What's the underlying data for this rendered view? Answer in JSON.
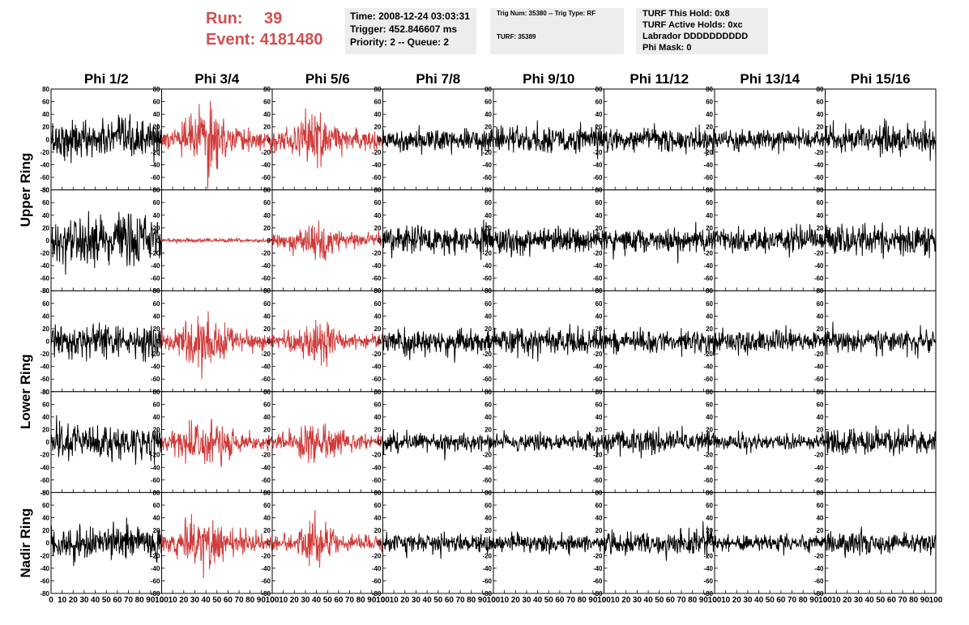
{
  "header": {
    "run_label": "Run:",
    "run_value": "39",
    "event_label": "Event:",
    "event_value": "4181480"
  },
  "info_time": {
    "time": "Time: 2008-12-24 03:03:31",
    "trigger": "Trigger: 452.846607 ms",
    "priority": "Priority: 2 -- Queue: 2"
  },
  "info_trig": {
    "trig": "Trig Num: 35380 -- Trig Type: RF",
    "turf": "TURF: 35389"
  },
  "info_turf": {
    "this_hold": "TURF This Hold: 0x8",
    "active_holds": "TURF Active Holds: 0xc",
    "labrador": "Labrador DDDDDDDDDD",
    "phi_mask": "Phi Mask: 0"
  },
  "colors": {
    "triggered": "#d03a3a",
    "normal": "#000000"
  },
  "chart_data": {
    "type": "line",
    "columns": [
      "Phi 1/2",
      "Phi 3/4",
      "Phi 5/6",
      "Phi 7/8",
      "Phi 9/10",
      "Phi 11/12",
      "Phi 13/14",
      "Phi 15/16"
    ],
    "row_groups": [
      {
        "label": "Upper Ring",
        "panel_rows": 2
      },
      {
        "label": "Lower Ring",
        "panel_rows": 2
      },
      {
        "label": "Nadir Ring",
        "panel_rows": 1
      }
    ],
    "xlim": [
      0,
      100
    ],
    "ylim": [
      -80,
      80
    ],
    "xticks": [
      0,
      10,
      20,
      30,
      40,
      50,
      60,
      70,
      80,
      90,
      100
    ],
    "yticks": [
      -80,
      -60,
      -40,
      -20,
      0,
      20,
      40,
      60,
      80
    ],
    "samples_per_trace": 260,
    "panels": [
      {
        "row": 0,
        "col": 0,
        "amp": 20,
        "triggered": false,
        "env": "flat"
      },
      {
        "row": 0,
        "col": 1,
        "amp": 25,
        "triggered": true,
        "env": "burst"
      },
      {
        "row": 0,
        "col": 2,
        "amp": 22,
        "triggered": true,
        "env": "burst"
      },
      {
        "row": 0,
        "col": 3,
        "amp": 12,
        "triggered": false,
        "env": "flat"
      },
      {
        "row": 0,
        "col": 4,
        "amp": 14,
        "triggered": false,
        "env": "flat"
      },
      {
        "row": 0,
        "col": 5,
        "amp": 12,
        "triggered": false,
        "env": "flat"
      },
      {
        "row": 0,
        "col": 6,
        "amp": 10,
        "triggered": false,
        "env": "flat"
      },
      {
        "row": 0,
        "col": 7,
        "amp": 15,
        "triggered": false,
        "env": "flat"
      },
      {
        "row": 1,
        "col": 0,
        "amp": 25,
        "triggered": false,
        "env": "flat"
      },
      {
        "row": 1,
        "col": 1,
        "amp": 2,
        "triggered": true,
        "env": "flat"
      },
      {
        "row": 1,
        "col": 2,
        "amp": 16,
        "triggered": true,
        "env": "burst"
      },
      {
        "row": 1,
        "col": 3,
        "amp": 15,
        "triggered": false,
        "env": "flat"
      },
      {
        "row": 1,
        "col": 4,
        "amp": 13,
        "triggered": false,
        "env": "flat"
      },
      {
        "row": 1,
        "col": 5,
        "amp": 13,
        "triggered": false,
        "env": "flat"
      },
      {
        "row": 1,
        "col": 6,
        "amp": 12,
        "triggered": false,
        "env": "flat"
      },
      {
        "row": 1,
        "col": 7,
        "amp": 16,
        "triggered": false,
        "env": "flat"
      },
      {
        "row": 2,
        "col": 0,
        "amp": 17,
        "triggered": false,
        "env": "flat"
      },
      {
        "row": 2,
        "col": 1,
        "amp": 22,
        "triggered": true,
        "env": "burst"
      },
      {
        "row": 2,
        "col": 2,
        "amp": 18,
        "triggered": true,
        "env": "burst"
      },
      {
        "row": 2,
        "col": 3,
        "amp": 13,
        "triggered": false,
        "env": "flat"
      },
      {
        "row": 2,
        "col": 4,
        "amp": 13,
        "triggered": false,
        "env": "flat"
      },
      {
        "row": 2,
        "col": 5,
        "amp": 11,
        "triggered": false,
        "env": "flat"
      },
      {
        "row": 2,
        "col": 6,
        "amp": 11,
        "triggered": false,
        "env": "flat"
      },
      {
        "row": 2,
        "col": 7,
        "amp": 11,
        "triggered": false,
        "env": "flat"
      },
      {
        "row": 3,
        "col": 0,
        "amp": 18,
        "triggered": false,
        "env": "flat"
      },
      {
        "row": 3,
        "col": 1,
        "amp": 22,
        "triggered": true,
        "env": "burst"
      },
      {
        "row": 3,
        "col": 2,
        "amp": 18,
        "triggered": true,
        "env": "burst"
      },
      {
        "row": 3,
        "col": 3,
        "amp": 10,
        "triggered": false,
        "env": "flat"
      },
      {
        "row": 3,
        "col": 4,
        "amp": 9,
        "triggered": false,
        "env": "flat"
      },
      {
        "row": 3,
        "col": 5,
        "amp": 12,
        "triggered": false,
        "env": "flat"
      },
      {
        "row": 3,
        "col": 6,
        "amp": 8,
        "triggered": false,
        "env": "flat"
      },
      {
        "row": 3,
        "col": 7,
        "amp": 13,
        "triggered": false,
        "env": "flat"
      },
      {
        "row": 4,
        "col": 0,
        "amp": 18,
        "triggered": false,
        "env": "flat"
      },
      {
        "row": 4,
        "col": 1,
        "amp": 24,
        "triggered": true,
        "env": "burst"
      },
      {
        "row": 4,
        "col": 2,
        "amp": 18,
        "triggered": true,
        "env": "burst"
      },
      {
        "row": 4,
        "col": 3,
        "amp": 10,
        "triggered": false,
        "env": "flat"
      },
      {
        "row": 4,
        "col": 4,
        "amp": 10,
        "triggered": false,
        "env": "flat"
      },
      {
        "row": 4,
        "col": 5,
        "amp": 13,
        "triggered": false,
        "env": "flat"
      },
      {
        "row": 4,
        "col": 6,
        "amp": 9,
        "triggered": false,
        "env": "flat"
      },
      {
        "row": 4,
        "col": 7,
        "amp": 11,
        "triggered": false,
        "env": "flat"
      }
    ]
  }
}
